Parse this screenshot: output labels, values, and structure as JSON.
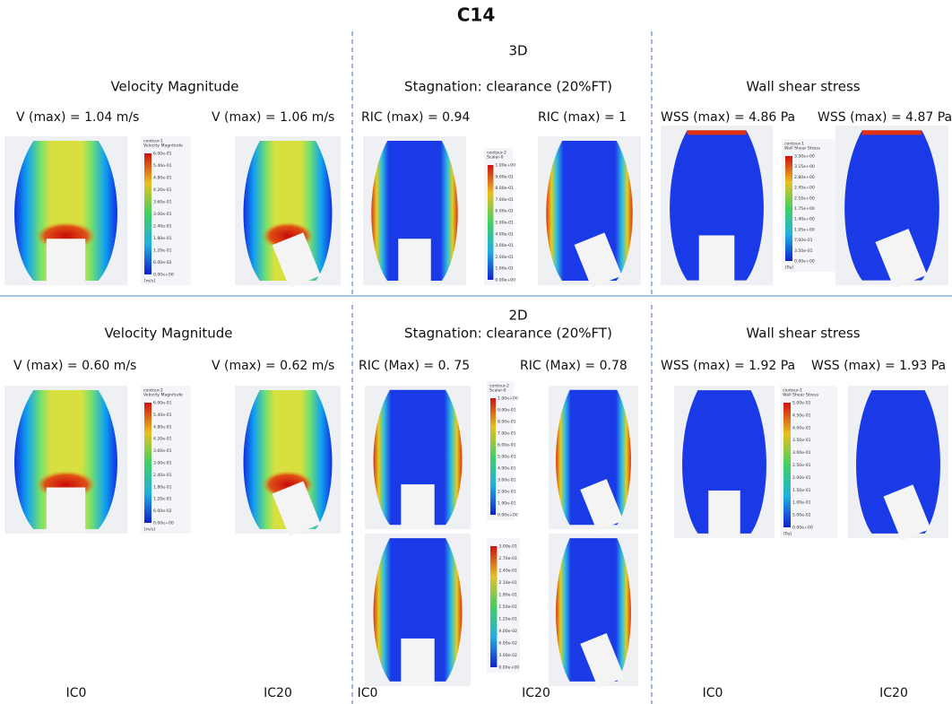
{
  "title": "C14",
  "sections": [
    {
      "label": "3D",
      "groups": [
        {
          "heading": "Velocity Magnitude",
          "max_labels": [
            "V (max) = 1.04 m/s",
            "V (max) = 1.06 m/s"
          ],
          "colorbars": [
            {
              "title": [
                "contour-1",
                "Velocity Magnitude"
              ],
              "ticks": [
                "6.00e-01",
                "5.40e-01",
                "4.80e-01",
                "4.20e-01",
                "3.60e-01",
                "3.00e-01",
                "2.40e-01",
                "1.80e-01",
                "1.20e-01",
                "6.00e-02",
                "0.00e+00"
              ],
              "unit": "[m/s]"
            }
          ]
        },
        {
          "heading": "Stagnation: clearance (20%FT)",
          "max_labels": [
            "RIC (max) = 0.94",
            "RIC (max) = 1"
          ],
          "colorbars": [
            {
              "title": [
                "contour-2",
                "Scalar-0"
              ],
              "ticks": [
                "1.00e+00",
                "9.00e-01",
                "8.00e-01",
                "7.00e-01",
                "6.00e-01",
                "5.00e-01",
                "4.00e-01",
                "3.00e-01",
                "2.00e-01",
                "1.00e-01",
                "0.00e+00"
              ]
            }
          ]
        },
        {
          "heading": "Wall shear stress",
          "max_labels": [
            "WSS (max) = 4.86 Pa",
            "WSS (max) = 4.87 Pa"
          ],
          "colorbars": [
            {
              "title": [
                "contour-1",
                "Wall Shear Stress"
              ],
              "ticks": [
                "3.50e+00",
                "3.15e+00",
                "2.80e+00",
                "2.45e+00",
                "2.10e+00",
                "1.75e+00",
                "1.40e+00",
                "1.05e+00",
                "7.00e-01",
                "3.50e-01",
                "0.00e+00"
              ],
              "unit": "[Pa]"
            }
          ]
        }
      ]
    },
    {
      "label": "2D",
      "groups": [
        {
          "heading": "Velocity Magnitude",
          "max_labels": [
            "V (max) = 0.60 m/s",
            "V (max) = 0.62 m/s"
          ],
          "colorbars": [
            {
              "title": [
                "contour-1",
                "Velocity Magnitude"
              ],
              "ticks": [
                "6.00e-01",
                "5.40e-01",
                "4.80e-01",
                "4.20e-01",
                "3.60e-01",
                "3.00e-01",
                "2.40e-01",
                "1.80e-01",
                "1.20e-01",
                "6.00e-02",
                "0.00e+00"
              ],
              "unit": "[m/s]"
            }
          ]
        },
        {
          "heading": "Stagnation: clearance (20%FT)",
          "max_labels": [
            "RIC (Max) = 0. 75",
            "RIC (Max) = 0.78"
          ],
          "colorbars": [
            {
              "title": [
                "contour-2",
                "Scalar-0"
              ],
              "ticks": [
                "1.00e+00",
                "9.00e-01",
                "8.00e-01",
                "7.00e-01",
                "6.00e-01",
                "5.00e-01",
                "4.00e-01",
                "3.00e-01",
                "2.00e-01",
                "1.00e-01",
                "0.00e+00"
              ]
            },
            {
              "ticks": [
                "3.00e-01",
                "2.70e-01",
                "2.40e-01",
                "2.10e-01",
                "1.80e-01",
                "1.50e-01",
                "1.20e-01",
                "9.00e-02",
                "6.00e-02",
                "3.00e-02",
                "0.00e+00"
              ]
            }
          ]
        },
        {
          "heading": "Wall shear stress",
          "max_labels": [
            "WSS (max) = 1.92 Pa",
            "WSS (max) = 1.93 Pa"
          ],
          "colorbars": [
            {
              "title": [
                "contour-1",
                "Wall Shear Stress"
              ],
              "ticks": [
                "5.00e-01",
                "4.50e-01",
                "4.00e-01",
                "3.50e-01",
                "3.00e-01",
                "2.50e-01",
                "2.00e-01",
                "1.50e-01",
                "1.00e-01",
                "5.00e-02",
                "0.00e+00"
              ],
              "unit": "[Pa]"
            }
          ]
        }
      ]
    }
  ],
  "footer_labels": [
    "IC0",
    "IC20",
    "IC0",
    "IC20",
    "IC0",
    "IC20"
  ]
}
